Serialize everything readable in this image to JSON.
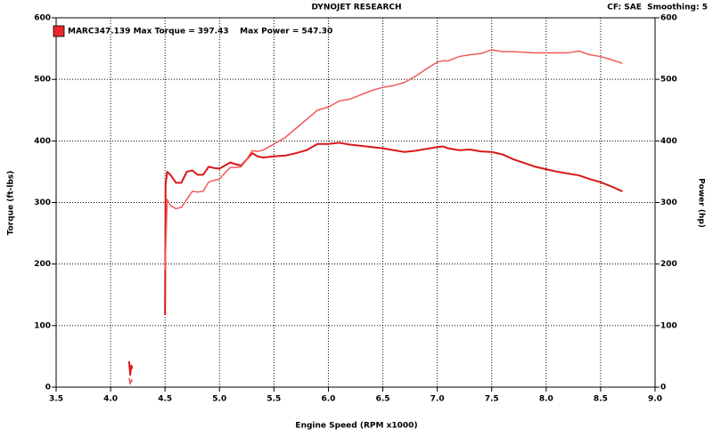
{
  "chart_data": {
    "type": "line",
    "title": "DYNOJET RESEARCH",
    "subtitle": "CF: SAE  Smoothing: 5",
    "legend_text": "MARC347.139 Max Torque = 397.43    Max Power = 547.30",
    "legend_color": "#e8262a",
    "x_label": "Engine Speed (RPM x1000)",
    "y_label": "Torque (ft-lbs)",
    "y2_label": "Power (hp)",
    "x": [
      4.17,
      4.18,
      4.19,
      4.2,
      4.35,
      4.5,
      4.505,
      4.52,
      4.55,
      4.6,
      4.65,
      4.7,
      4.75,
      4.8,
      4.85,
      4.9,
      4.95,
      5.0,
      5.05,
      5.1,
      5.15,
      5.2,
      5.25,
      5.3,
      5.35,
      5.4,
      5.5,
      5.6,
      5.7,
      5.8,
      5.9,
      6.0,
      6.1,
      6.2,
      6.3,
      6.4,
      6.5,
      6.6,
      6.7,
      6.8,
      6.9,
      7.0,
      7.05,
      7.1,
      7.2,
      7.3,
      7.4,
      7.5,
      7.6,
      7.7,
      7.8,
      7.9,
      8.0,
      8.1,
      8.2,
      8.3,
      8.4,
      8.5,
      8.6,
      8.7
    ],
    "series": [
      {
        "color": "#d81818",
        "width": 2,
        "values": [
          42,
          20,
          35,
          30,
          null,
          117,
          330,
          350,
          345,
          332,
          332,
          350,
          352,
          345,
          345,
          358,
          356,
          355,
          360,
          365,
          362,
          360,
          370,
          380,
          375,
          373,
          375,
          376,
          380,
          385,
          395,
          395,
          397,
          394,
          392,
          390,
          388,
          385,
          382,
          384,
          387,
          390,
          391,
          388,
          385,
          386,
          383,
          382,
          378,
          370,
          364,
          358,
          354,
          350,
          347,
          344,
          338,
          333,
          326,
          318
        ]
      },
      {
        "color": "#f05a5a",
        "width": 1.5,
        "axis": "y2",
        "values": [
          15,
          5,
          12,
          9,
          null,
          190,
          220,
          305,
          295,
          290,
          292,
          305,
          318,
          317,
          318,
          333,
          336,
          338,
          348,
          357,
          357,
          358,
          370,
          384,
          383,
          385,
          395,
          405,
          420,
          435,
          450,
          455,
          465,
          468,
          475,
          482,
          487,
          490,
          495,
          505,
          517,
          528,
          530,
          530,
          537,
          540,
          542,
          548,
          545,
          545,
          544,
          543,
          543,
          543,
          543,
          546,
          540,
          537,
          532,
          526
        ]
      }
    ],
    "xlim": [
      3.5,
      9.0
    ],
    "xticks": [
      3.5,
      {
        "value": 4,
        "label": "4.0"
      },
      4.5,
      {
        "value": 5,
        "label": "5.0"
      },
      5.5,
      {
        "value": 6,
        "label": "6.0"
      },
      6.5,
      {
        "value": 7,
        "label": "7.0"
      },
      7.5,
      {
        "value": 8,
        "label": "8.0"
      },
      8.5,
      {
        "value": 9,
        "label": "9.0"
      }
    ],
    "ylim": [
      0,
      600
    ],
    "yticks": [
      0,
      100,
      200,
      300,
      400,
      500,
      600
    ],
    "y2lim": [
      0,
      600
    ],
    "y2ticks": [
      0,
      100,
      200,
      300,
      400,
      500,
      600
    ],
    "grid": true
  }
}
